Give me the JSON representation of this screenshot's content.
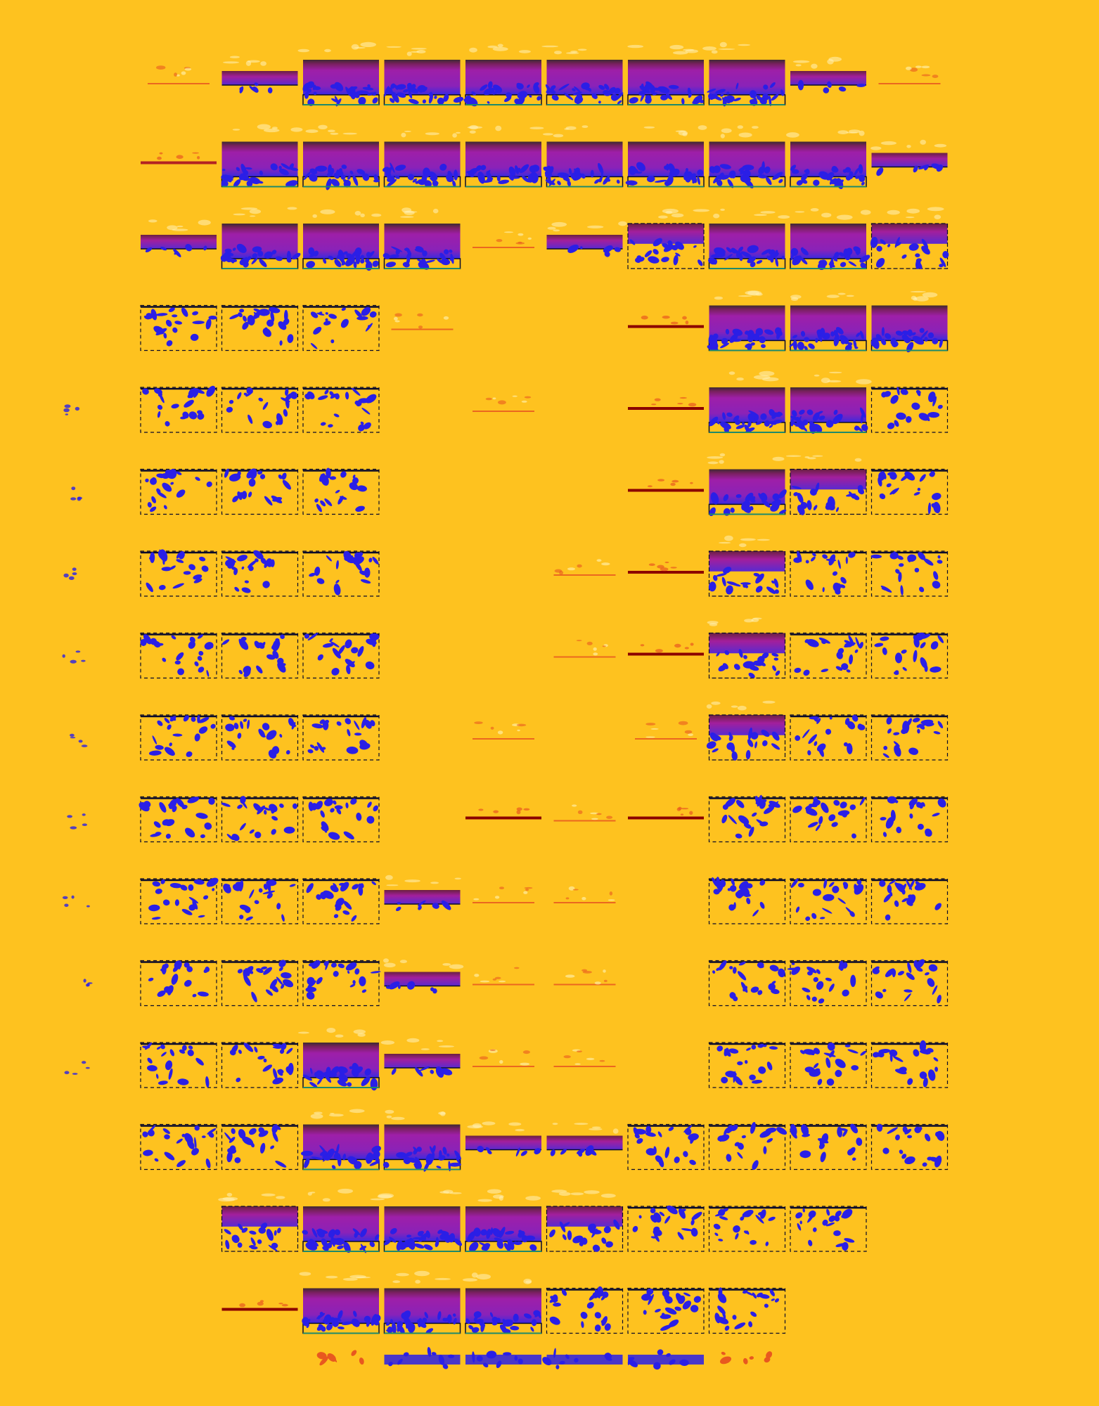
{
  "artwork": {
    "colors": {
      "background": "#FEC21F",
      "panel_fill": "#9B1FA8",
      "panel_top": "#5A2E40",
      "panel_bottom": "#4A2FD8",
      "blot": "#2A1FE6",
      "outline": "#0A0A2A",
      "red_line": "#B22222",
      "dark_red_line": "#8B0000",
      "orange_mark": "#E8581F",
      "green_edge": "#1E8A6A",
      "pale_mark": "#FFF3B8"
    },
    "grid": {
      "rows": [
        [
          "stub",
          "strip",
          "full",
          "full",
          "full",
          "full",
          "full",
          "full",
          "strip",
          "stub"
        ],
        [
          "line",
          "full",
          "full",
          "full",
          "full",
          "full",
          "full",
          "full",
          "full",
          "strip"
        ],
        [
          "strip",
          "full",
          "full",
          "full",
          "stub",
          "strip",
          "half",
          "full",
          "full",
          "half"
        ],
        [
          "outline",
          "outline",
          "outline",
          "stub",
          "empty",
          "empty",
          "line",
          "full",
          "full",
          "full"
        ],
        [
          "outline",
          "outline",
          "outline",
          "empty",
          "stub",
          "empty",
          "line",
          "full",
          "full",
          "outline"
        ],
        [
          "outline",
          "outline",
          "outline",
          "empty",
          "empty",
          "empty",
          "line",
          "full",
          "half",
          "outline"
        ],
        [
          "outline",
          "outline",
          "outline",
          "empty",
          "empty",
          "stub",
          "line",
          "half",
          "outline",
          "outline"
        ],
        [
          "outline",
          "outline",
          "outline",
          "empty",
          "empty",
          "stub",
          "line",
          "half",
          "outline",
          "outline"
        ],
        [
          "outline",
          "outline",
          "outline",
          "empty",
          "stub",
          "empty",
          "stub",
          "half",
          "outline",
          "outline"
        ],
        [
          "outline",
          "outline",
          "outline",
          "empty",
          "line",
          "stub",
          "line",
          "outline",
          "outline",
          "outline"
        ],
        [
          "outline",
          "outline",
          "outline",
          "strip",
          "stub",
          "stub",
          "empty",
          "outline",
          "outline",
          "outline"
        ],
        [
          "outline",
          "outline",
          "outline",
          "strip",
          "stub",
          "stub",
          "empty",
          "outline",
          "outline",
          "outline"
        ],
        [
          "outline",
          "outline",
          "full",
          "strip",
          "stub",
          "stub",
          "empty",
          "outline",
          "outline",
          "outline"
        ],
        [
          "outline",
          "outline",
          "full",
          "full",
          "strip",
          "strip",
          "outline",
          "outline",
          "outline",
          "outline"
        ],
        [
          "empty",
          "half",
          "full",
          "full",
          "full",
          "half",
          "outline",
          "outline",
          "outline",
          "empty"
        ],
        [
          "empty",
          "line",
          "full",
          "full",
          "full",
          "outline",
          "outline",
          "outline",
          "empty",
          "empty"
        ]
      ],
      "bottom_row": [
        "empty",
        "empty",
        "stub",
        "outline",
        "outline",
        "outline",
        "outline",
        "stub",
        "empty",
        "empty"
      ]
    }
  }
}
